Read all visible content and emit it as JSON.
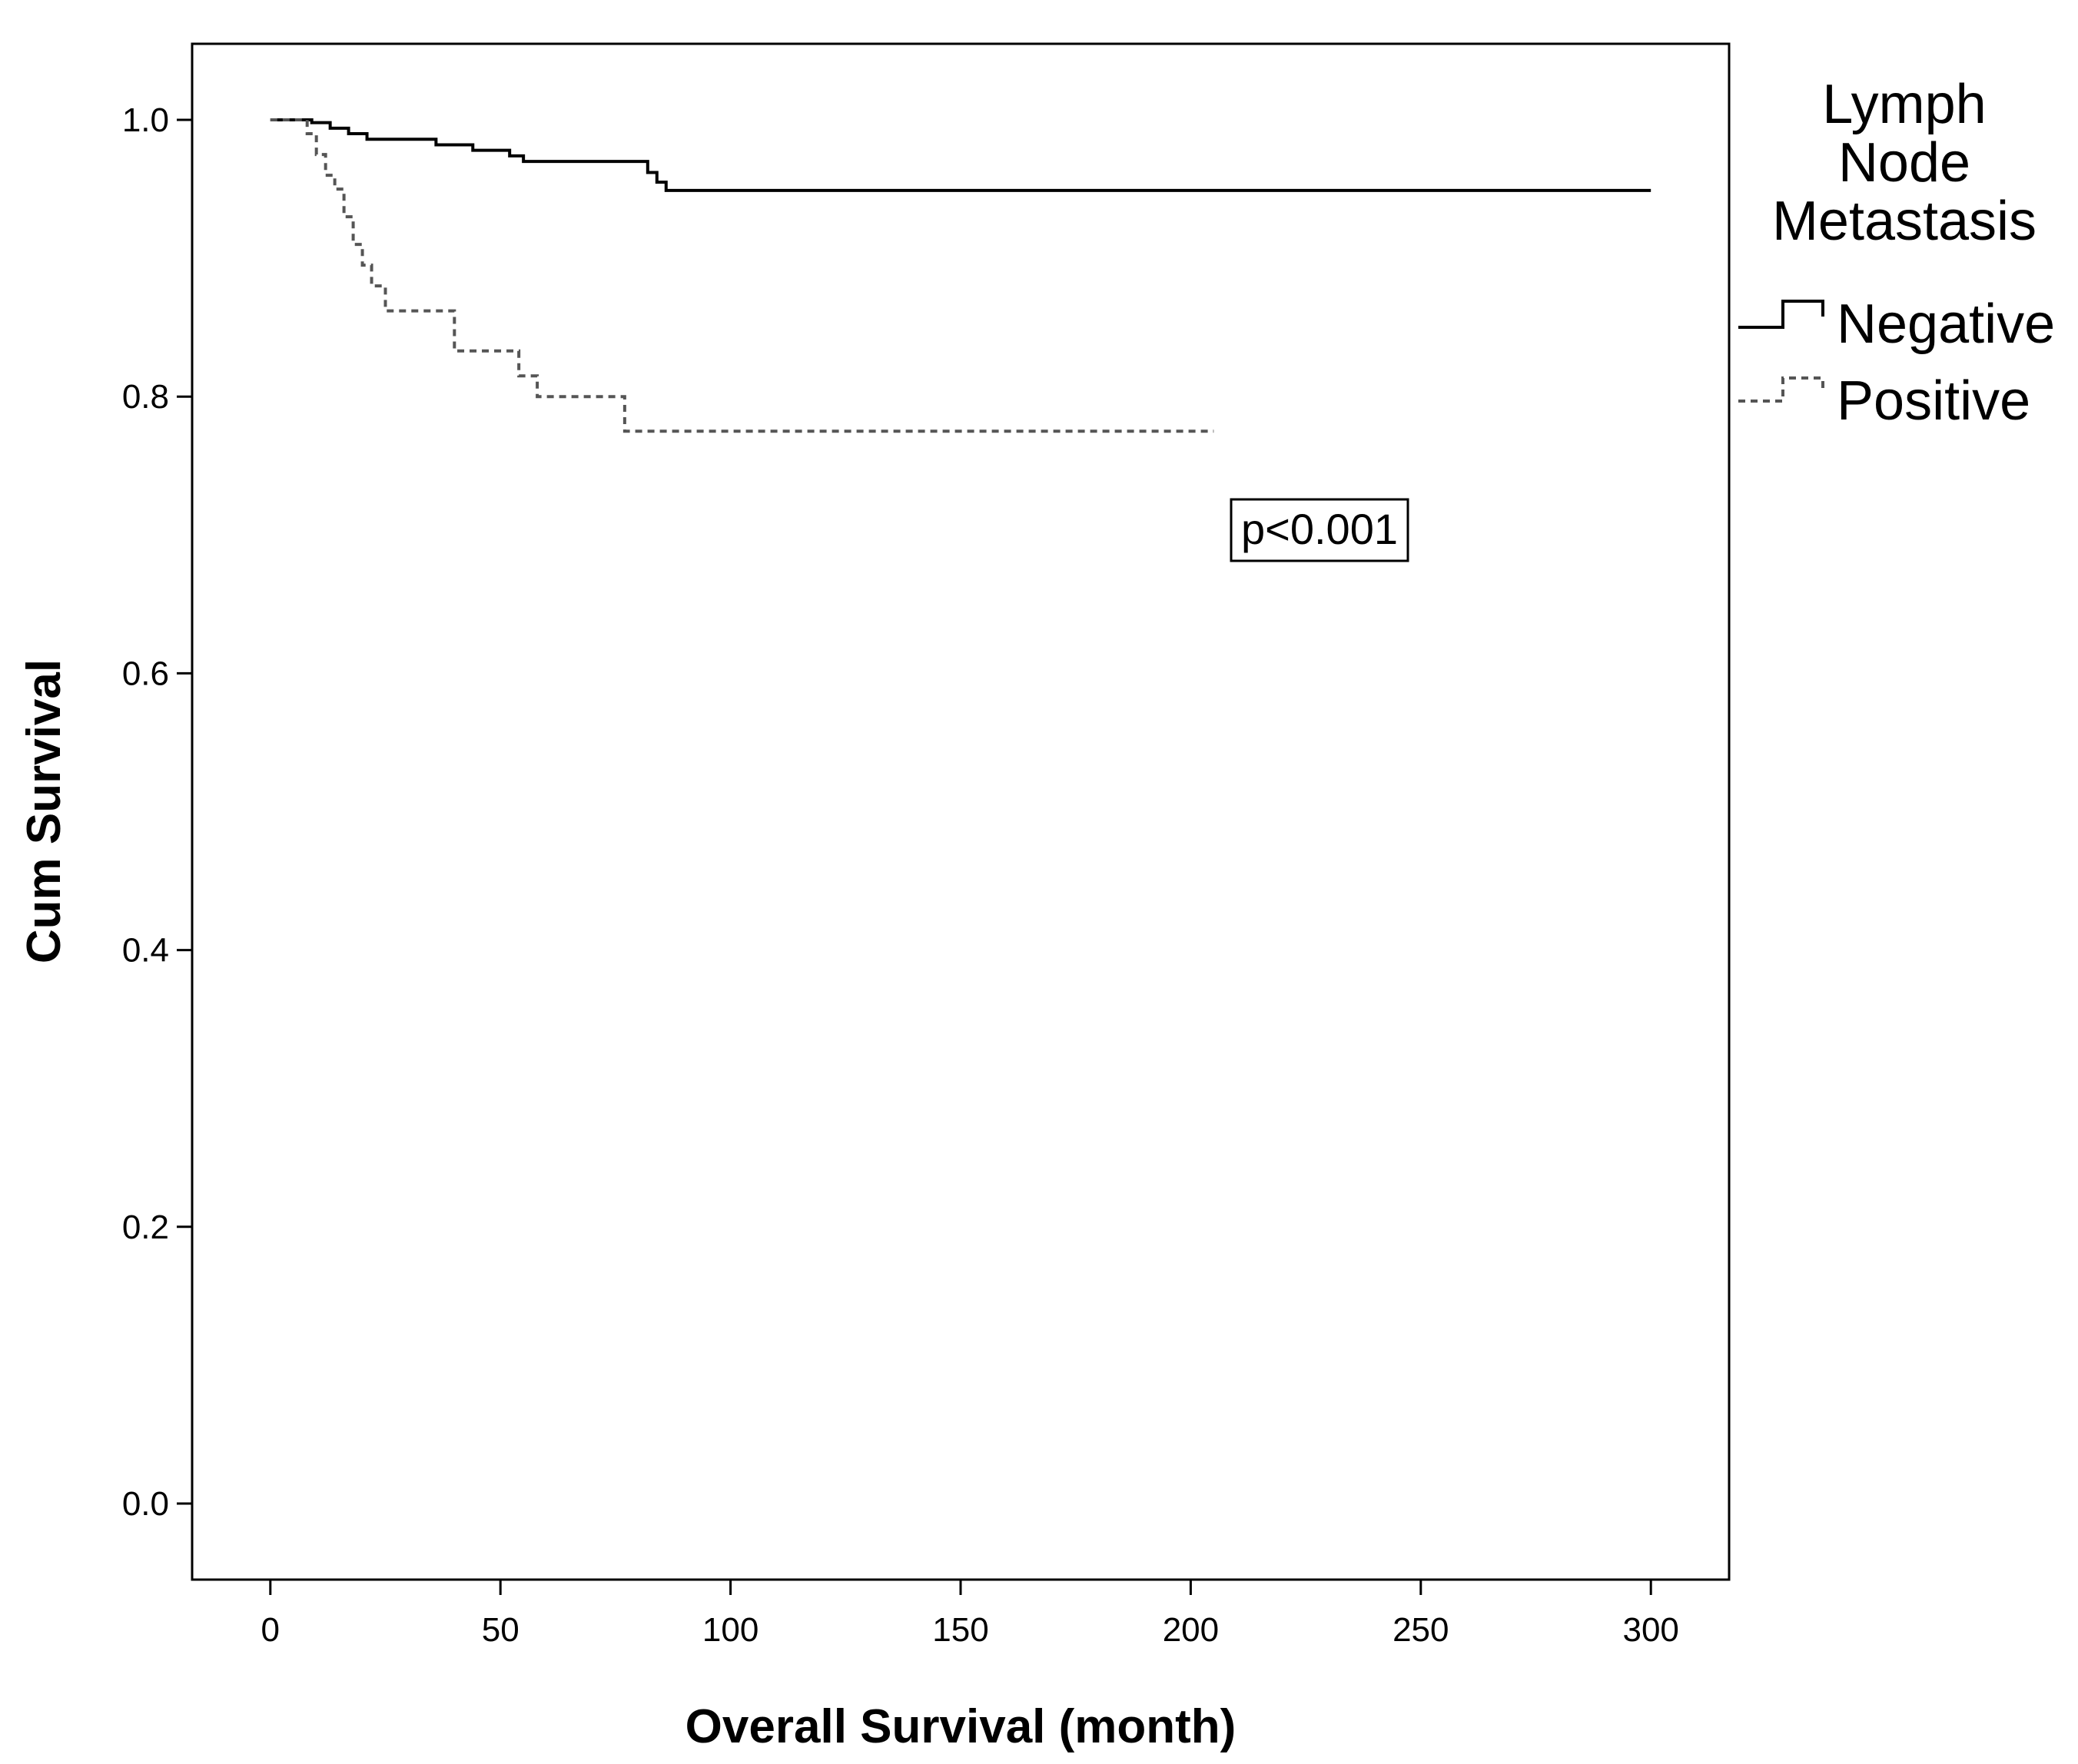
{
  "chart_data": {
    "type": "line",
    "xlabel": "Overall Survival (month)",
    "ylabel": "Cum Survival",
    "xlim": [
      -17,
      317
    ],
    "ylim": [
      -0.055,
      1.055
    ],
    "xticks": [
      0,
      50,
      100,
      150,
      200,
      250,
      300
    ],
    "yticks": [
      0.0,
      0.2,
      0.4,
      0.6,
      0.8,
      1.0
    ],
    "xtick_labels": [
      "0",
      "50",
      "100",
      "150",
      "200",
      "250",
      "300"
    ],
    "ytick_labels": [
      "0.0",
      "0.2",
      "0.4",
      "0.6",
      "0.8",
      "1.0"
    ],
    "grid": false,
    "legend": {
      "title": [
        "Lymph",
        "Node",
        "Metastasis"
      ],
      "placement": "outside-right-top"
    },
    "series": [
      {
        "name": "Negative",
        "style": "solid",
        "color": "#000000",
        "steps": [
          [
            0,
            1.0
          ],
          [
            9,
            0.998
          ],
          [
            13,
            0.994
          ],
          [
            17,
            0.99
          ],
          [
            21,
            0.986
          ],
          [
            36,
            0.982
          ],
          [
            44,
            0.978
          ],
          [
            52,
            0.974
          ],
          [
            55,
            0.97
          ],
          [
            82,
            0.962
          ],
          [
            84,
            0.955
          ],
          [
            86,
            0.949
          ],
          [
            300,
            0.949
          ]
        ]
      },
      {
        "name": "Positive",
        "style": "dashed",
        "color": "#555555",
        "steps": [
          [
            0,
            1.0
          ],
          [
            8,
            0.99
          ],
          [
            10,
            0.975
          ],
          [
            12,
            0.96
          ],
          [
            14,
            0.95
          ],
          [
            16,
            0.93
          ],
          [
            18,
            0.91
          ],
          [
            20,
            0.895
          ],
          [
            22,
            0.88
          ],
          [
            25,
            0.862
          ],
          [
            40,
            0.833
          ],
          [
            54,
            0.815
          ],
          [
            58,
            0.8
          ],
          [
            77,
            0.775
          ],
          [
            205,
            0.775
          ]
        ]
      }
    ],
    "annotations": [
      {
        "text": "p<0.001",
        "boxed": true
      }
    ]
  }
}
